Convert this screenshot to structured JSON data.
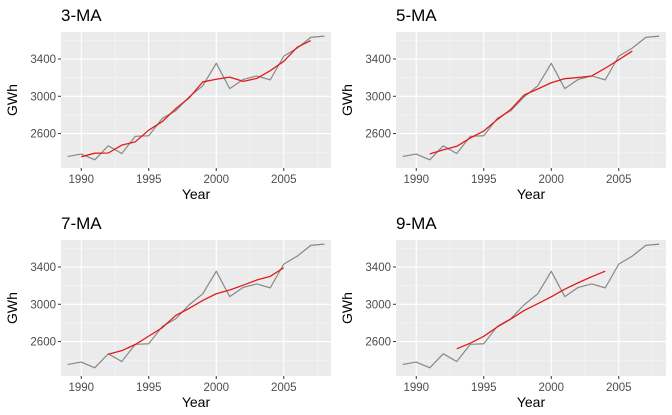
{
  "colors": {
    "panel_background": "#ebebeb",
    "grid_major": "#ffffff",
    "data_line": "#888888",
    "ma_line": "#e31a1c"
  },
  "chart_data": [
    {
      "type": "line",
      "title": "3-MA",
      "xlabel": "Year",
      "ylabel": "GWh",
      "xlim": [
        1988.5,
        2008.5
      ],
      "ylim": [
        2230,
        3690
      ],
      "xticks": [
        1990,
        1995,
        2000,
        2005
      ],
      "yticks": [
        2600,
        3000,
        3400
      ],
      "grid": true,
      "series": [
        {
          "role": "data",
          "x": [
            1989,
            1990,
            1991,
            1992,
            1993,
            1994,
            1995,
            1996,
            1997,
            1998,
            1999,
            2000,
            2001,
            2002,
            2003,
            2004,
            2005,
            2006,
            2007,
            2008
          ],
          "y": [
            2354,
            2380,
            2318,
            2468,
            2386,
            2570,
            2576,
            2762,
            2845,
            2995,
            3112,
            3354,
            3082,
            3181,
            3218,
            3176,
            3431,
            3517,
            3632,
            3646
          ]
        },
        {
          "role": "ma",
          "x": [
            1990,
            1991,
            1992,
            1993,
            1994,
            1995,
            1996,
            1997,
            1998,
            1999,
            2000,
            2001,
            2002,
            2003,
            2004,
            2005,
            2006,
            2007
          ],
          "y": [
            2351,
            2389,
            2391,
            2475,
            2511,
            2636,
            2728,
            2867,
            2984,
            3154,
            3183,
            3206,
            3160,
            3192,
            3275,
            3375,
            3527,
            3598
          ]
        }
      ]
    },
    {
      "type": "line",
      "title": "5-MA",
      "xlabel": "Year",
      "ylabel": "GWh",
      "xlim": [
        1988.5,
        2008.5
      ],
      "ylim": [
        2230,
        3690
      ],
      "xticks": [
        1990,
        1995,
        2000,
        2005
      ],
      "yticks": [
        2600,
        3000,
        3400
      ],
      "grid": true,
      "series": [
        {
          "role": "data",
          "x": [
            1989,
            1990,
            1991,
            1992,
            1993,
            1994,
            1995,
            1996,
            1997,
            1998,
            1999,
            2000,
            2001,
            2002,
            2003,
            2004,
            2005,
            2006,
            2007,
            2008
          ],
          "y": [
            2354,
            2380,
            2318,
            2468,
            2386,
            2570,
            2576,
            2762,
            2845,
            2995,
            3112,
            3354,
            3082,
            3181,
            3218,
            3176,
            3431,
            3517,
            3632,
            3646
          ]
        },
        {
          "role": "ma",
          "x": [
            1991,
            1992,
            1993,
            1994,
            1995,
            1996,
            1997,
            1998,
            1999,
            2000,
            2001,
            2002,
            2003,
            2004,
            2005,
            2006
          ],
          "y": [
            2381,
            2425,
            2463,
            2552,
            2627,
            2750,
            2858,
            3014,
            3078,
            3145,
            3189,
            3202,
            3218,
            3301,
            3391,
            3485
          ]
        }
      ]
    },
    {
      "type": "line",
      "title": "7-MA",
      "xlabel": "Year",
      "ylabel": "GWh",
      "xlim": [
        1988.5,
        2008.5
      ],
      "ylim": [
        2230,
        3690
      ],
      "xticks": [
        1990,
        1995,
        2000,
        2005
      ],
      "yticks": [
        2600,
        3000,
        3400
      ],
      "grid": true,
      "series": [
        {
          "role": "data",
          "x": [
            1989,
            1990,
            1991,
            1992,
            1993,
            1994,
            1995,
            1996,
            1997,
            1998,
            1999,
            2000,
            2001,
            2002,
            2003,
            2004,
            2005,
            2006,
            2007,
            2008
          ],
          "y": [
            2354,
            2380,
            2318,
            2468,
            2386,
            2570,
            2576,
            2762,
            2845,
            2995,
            3112,
            3354,
            3082,
            3181,
            3218,
            3176,
            3431,
            3517,
            3632,
            3646
          ]
        },
        {
          "role": "ma",
          "x": [
            1992,
            1993,
            1994,
            1995,
            1996,
            1997,
            1998,
            1999,
            2000,
            2001,
            2002,
            2003,
            2004,
            2005
          ],
          "y": [
            2464,
            2502,
            2568,
            2658,
            2749,
            2880,
            2956,
            3041,
            3113,
            3153,
            3205,
            3260,
            3300,
            3392
          ]
        }
      ]
    },
    {
      "type": "line",
      "title": "9-MA",
      "xlabel": "Year",
      "ylabel": "GWh",
      "xlim": [
        1988.5,
        2008.5
      ],
      "ylim": [
        2230,
        3690
      ],
      "xticks": [
        1990,
        1995,
        2000,
        2005
      ],
      "yticks": [
        2600,
        3000,
        3400
      ],
      "grid": true,
      "series": [
        {
          "role": "data",
          "x": [
            1989,
            1990,
            1991,
            1992,
            1993,
            1994,
            1995,
            1996,
            1997,
            1998,
            1999,
            2000,
            2001,
            2002,
            2003,
            2004,
            2005,
            2006,
            2007,
            2008
          ],
          "y": [
            2354,
            2380,
            2318,
            2468,
            2386,
            2570,
            2576,
            2762,
            2845,
            2995,
            3112,
            3354,
            3082,
            3181,
            3218,
            3176,
            3431,
            3517,
            3632,
            3646
          ]
        },
        {
          "role": "ma",
          "x": [
            1993,
            1994,
            1995,
            1996,
            1997,
            1998,
            1999,
            2000,
            2001,
            2002,
            2003,
            2004
          ],
          "y": [
            2522,
            2582,
            2656,
            2756,
            2841,
            2934,
            3006,
            3080,
            3162,
            3231,
            3296,
            3355
          ]
        }
      ]
    }
  ]
}
